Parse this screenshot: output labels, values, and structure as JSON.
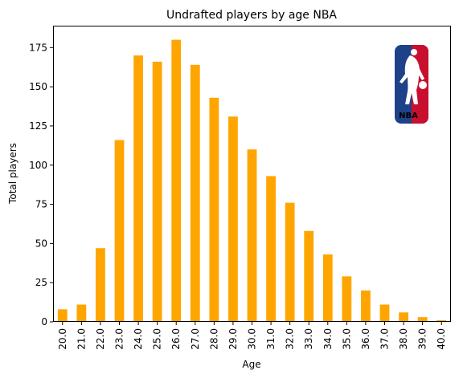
{
  "chart_data": {
    "type": "bar",
    "title": "Undrafted players by age NBA",
    "xlabel": "Age",
    "ylabel": "Total players",
    "categories": [
      "20.0",
      "21.0",
      "22.0",
      "23.0",
      "24.0",
      "25.0",
      "26.0",
      "27.0",
      "28.0",
      "29.0",
      "30.0",
      "31.0",
      "32.0",
      "33.0",
      "34.0",
      "35.0",
      "36.0",
      "37.0",
      "38.0",
      "39.0",
      "40.0"
    ],
    "values": [
      8,
      11,
      47,
      116,
      170,
      166,
      180,
      164,
      143,
      131,
      110,
      93,
      76,
      58,
      43,
      29,
      20,
      11,
      6,
      3,
      1
    ],
    "ylim": [
      0,
      189
    ],
    "yticks": [
      0,
      25,
      50,
      75,
      100,
      125,
      150,
      175
    ],
    "bar_color": "#FFA500",
    "grid": false,
    "legend": "none",
    "logo": {
      "icon": "nba-logo-icon",
      "text": "NBA",
      "colors": {
        "blue": "#1D428A",
        "red": "#C8102E",
        "white": "#FFFFFF"
      }
    }
  }
}
